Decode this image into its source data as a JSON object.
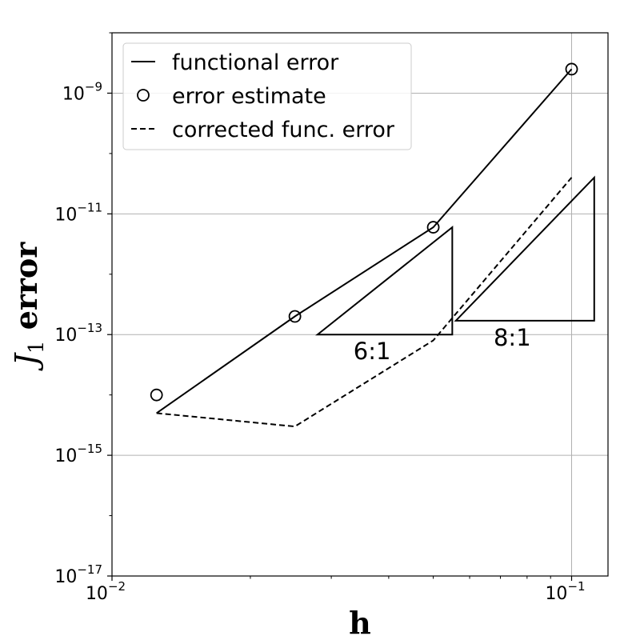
{
  "chart_data": {
    "type": "line",
    "xscale": "log",
    "yscale": "log",
    "xlim": [
      0.01,
      0.12
    ],
    "ylim": [
      1e-17,
      1e-08
    ],
    "xlabel": "h",
    "ylabel": {
      "main": "J",
      "subscript": "1",
      "rest": " error"
    },
    "grid": "major",
    "legend_position": "top-left",
    "x_ticks": [
      {
        "value": 0.01,
        "base": "10",
        "exp": "−2"
      },
      {
        "value": 0.1,
        "base": "10",
        "exp": "−1"
      }
    ],
    "y_ticks": [
      {
        "value": 1e-17,
        "base": "10",
        "exp": "−17"
      },
      {
        "value": 1e-15,
        "base": "10",
        "exp": "−15"
      },
      {
        "value": 1e-13,
        "base": "10",
        "exp": "−13"
      },
      {
        "value": 1e-11,
        "base": "10",
        "exp": "−11"
      },
      {
        "value": 1e-09,
        "base": "10",
        "exp": "−9"
      }
    ],
    "series": [
      {
        "name": "functional error",
        "style": "solid",
        "marker": "none",
        "x": [
          0.0125,
          0.025,
          0.05,
          0.1
        ],
        "y": [
          5e-15,
          2e-13,
          6e-12,
          2.5e-09
        ]
      },
      {
        "name": "error estimate",
        "style": "none",
        "marker": "circle",
        "x": [
          0.0125,
          0.025,
          0.05,
          0.1
        ],
        "y": [
          1e-14,
          2e-13,
          6e-12,
          2.5e-09
        ]
      },
      {
        "name": "corrected func. error",
        "style": "dashed",
        "marker": "none",
        "x": [
          0.0125,
          0.025,
          0.05,
          0.1
        ],
        "y": [
          5e-15,
          3e-15,
          8e-14,
          4e-11
        ]
      }
    ],
    "slope_triangles": [
      {
        "label": "6:1",
        "x0": 0.028,
        "x1": 0.055,
        "y_low": 1e-13,
        "y_high": 6e-12
      },
      {
        "label": "8:1",
        "x0": 0.056,
        "x1": 0.112,
        "y_low": 1.7e-13,
        "y_high": 4e-11
      }
    ],
    "colors": {
      "lines": "#000000",
      "grid": "#b0b0b0",
      "legend_border": "#cccccc"
    }
  }
}
